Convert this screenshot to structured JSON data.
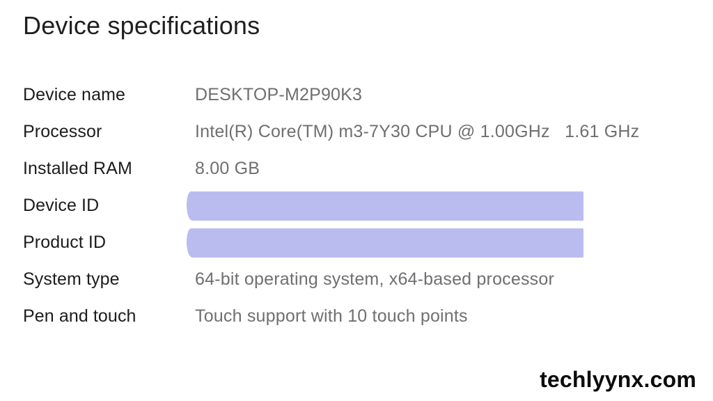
{
  "page": {
    "title": "Device specifications",
    "watermark": "techlyynx.com"
  },
  "specs": {
    "rows": [
      {
        "label": "Device name",
        "value": "DESKTOP-M2P90K3",
        "redacted": false
      },
      {
        "label": "Processor",
        "value": "Intel(R) Core(TM) m3-7Y30 CPU @ 1.00GHz   1.61 GHz",
        "redacted": false
      },
      {
        "label": "Installed RAM",
        "value": "8.00 GB",
        "redacted": false
      },
      {
        "label": "Device ID",
        "value": "",
        "redacted": true
      },
      {
        "label": "Product ID",
        "value": "",
        "redacted": true
      },
      {
        "label": "System type",
        "value": "64-bit operating system, x64-based processor",
        "redacted": false
      },
      {
        "label": "Pen and touch",
        "value": "Touch support with 10 touch points",
        "redacted": false
      }
    ]
  },
  "colors": {
    "title_text": "#1f1f1f",
    "label_text": "#1c1c1c",
    "value_text": "#6f6f6f",
    "redaction_bar": "#babcf0",
    "watermark_text": "#0b0b0b",
    "background": "#ffffff"
  }
}
